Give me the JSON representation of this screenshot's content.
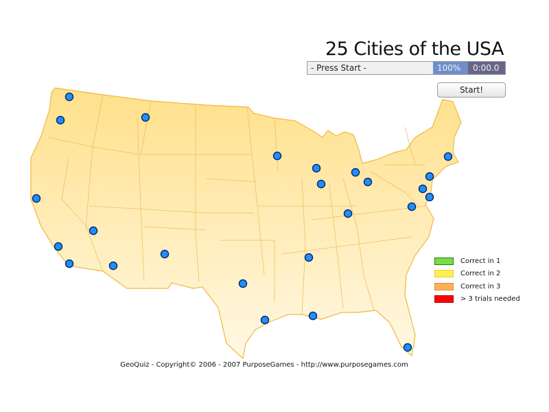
{
  "title": "25 Cities of the USA",
  "status": {
    "message": "- Press Start -",
    "percent": "100%",
    "timer": "0:00.0"
  },
  "start_button": "Start!",
  "legend": [
    {
      "label": "Correct in 1",
      "color": "#77dd44"
    },
    {
      "label": "Correct in 2",
      "color": "#ffee55"
    },
    {
      "label": "Correct in 3",
      "color": "#ffb055"
    },
    {
      "label": "> 3 trials needed",
      "color": "#ff0000"
    }
  ],
  "colors": {
    "map_fill": "#ffe9a0",
    "state_border": "#f0b840",
    "city_marker": "#1e8fff"
  },
  "city_count": 25,
  "footer": "GeoQuiz - Copyright© 2006 - 2007 PurposeGames - http://www.purposegames.com"
}
